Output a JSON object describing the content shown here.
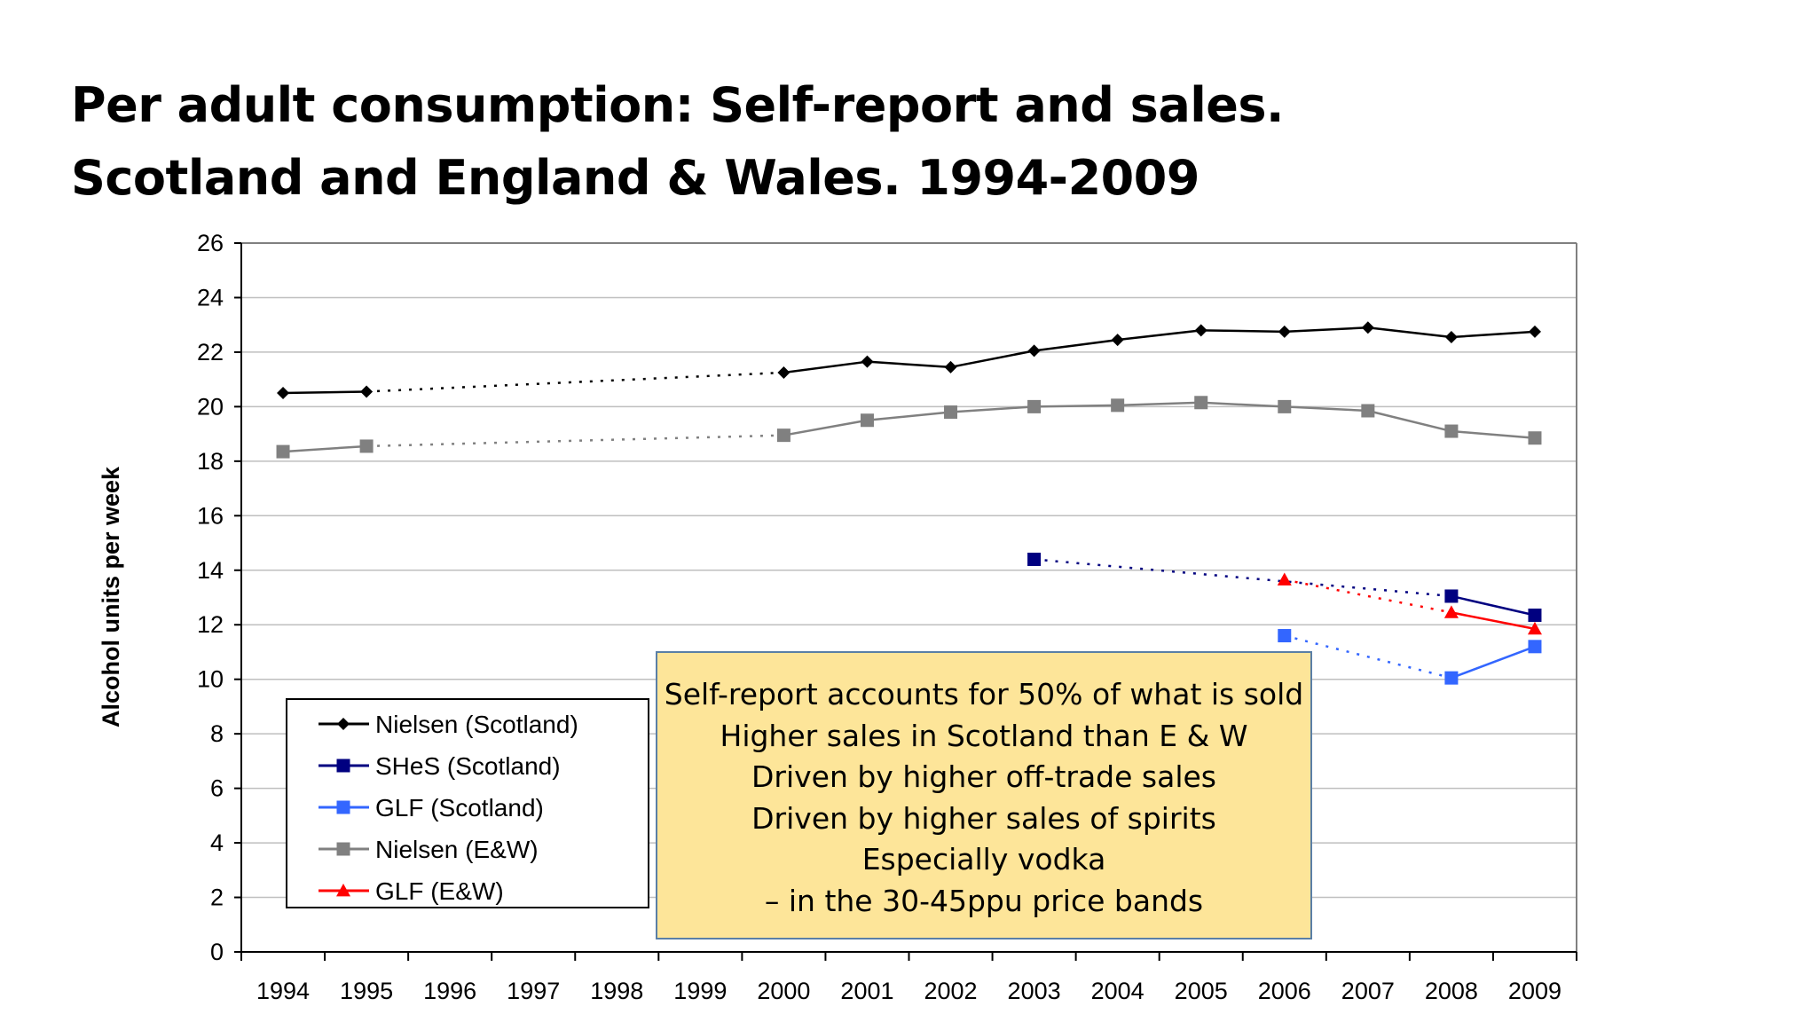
{
  "slide": {
    "title_lines": [
      "Per adult consumption: Self-report and sales.",
      "Scotland and England & Wales. 1994-2009"
    ],
    "callout_lines": [
      "Self-report accounts for 50% of what is sold",
      "Higher sales in Scotland than E & W",
      "Driven by higher off-trade sales",
      "Driven by higher sales of spirits",
      "Especially vodka",
      "– in the 30-45ppu price bands"
    ]
  },
  "chart_data": {
    "type": "line",
    "title": "",
    "xlabel": "",
    "ylabel": "Alcohol units per week",
    "x": [
      1994,
      1995,
      1996,
      1997,
      1998,
      1999,
      2000,
      2001,
      2002,
      2003,
      2004,
      2005,
      2006,
      2007,
      2008,
      2009
    ],
    "ylim": [
      0,
      26
    ],
    "yticks": [
      0,
      2,
      4,
      6,
      8,
      10,
      12,
      14,
      16,
      18,
      20,
      22,
      24,
      26
    ],
    "grid": "horizontal",
    "legend_position": "bottom-left",
    "series": [
      {
        "name": "Nielsen (Scotland)",
        "color": "#000000",
        "marker": "diamond",
        "points": [
          [
            1994,
            20.5
          ],
          [
            1995,
            20.55
          ],
          [
            2000,
            21.25
          ],
          [
            2001,
            21.65
          ],
          [
            2002,
            21.45
          ],
          [
            2003,
            22.05
          ],
          [
            2004,
            22.45
          ],
          [
            2005,
            22.8
          ],
          [
            2006,
            22.75
          ],
          [
            2007,
            22.9
          ],
          [
            2008,
            22.55
          ],
          [
            2009,
            22.75
          ]
        ]
      },
      {
        "name": "SHeS (Scotland)",
        "color": "#000080",
        "marker": "square",
        "points": [
          [
            2003,
            14.4
          ],
          [
            2008,
            13.05
          ],
          [
            2009,
            12.35
          ]
        ]
      },
      {
        "name": "GLF (Scotland)",
        "color": "#3366ff",
        "marker": "square",
        "points": [
          [
            2006,
            11.6
          ],
          [
            2008,
            10.05
          ],
          [
            2009,
            11.2
          ]
        ]
      },
      {
        "name": "Nielsen (E&W)",
        "color": "#808080",
        "marker": "square",
        "points": [
          [
            1994,
            18.35
          ],
          [
            1995,
            18.55
          ],
          [
            2000,
            18.95
          ],
          [
            2001,
            19.5
          ],
          [
            2002,
            19.8
          ],
          [
            2003,
            20.0
          ],
          [
            2004,
            20.05
          ],
          [
            2005,
            20.15
          ],
          [
            2006,
            20.0
          ],
          [
            2007,
            19.85
          ],
          [
            2008,
            19.1
          ],
          [
            2009,
            18.85
          ]
        ]
      },
      {
        "name": "GLF (E&W)",
        "color": "#ff0000",
        "marker": "triangle",
        "points": [
          [
            2006,
            13.65
          ],
          [
            2008,
            12.45
          ],
          [
            2009,
            11.85
          ]
        ]
      }
    ]
  }
}
